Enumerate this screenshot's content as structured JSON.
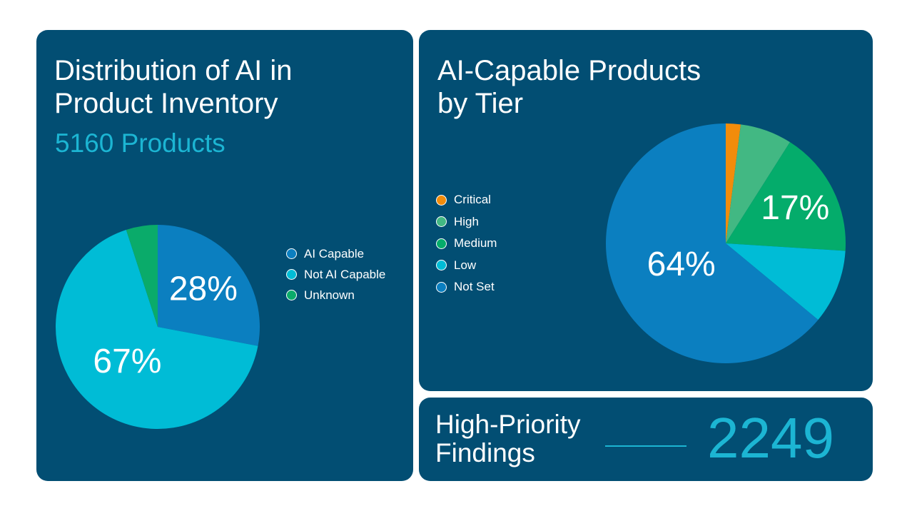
{
  "colors": {
    "panel_bg": "#024e73",
    "accent_cyan": "#1cb5d3",
    "ai_capable": "#0b7fc0",
    "not_ai_capable": "#00bcd6",
    "unknown": "#0aab6a",
    "critical": "#f28c0b",
    "high": "#42b883",
    "medium": "#04ac6b",
    "low": "#00bcd6",
    "not_set": "#0b7fc0"
  },
  "left": {
    "title": "Distribution of AI in Product Inventory",
    "subtitle": "5160 Products"
  },
  "right": {
    "title": "AI-Capable Products by Tier"
  },
  "findings": {
    "label": "High-Priority Findings",
    "value": "2249"
  },
  "chart_data": [
    {
      "type": "pie",
      "title": "Distribution of AI in Product Inventory",
      "subtitle": "5160 Products",
      "categories": [
        "AI Capable",
        "Not AI Capable",
        "Unknown"
      ],
      "values": [
        28,
        67,
        5
      ],
      "units": "%",
      "data_labels": [
        "28%",
        "67%",
        ""
      ],
      "colors": [
        "#0b7fc0",
        "#00bcd6",
        "#0aab6a"
      ],
      "legend": "right"
    },
    {
      "type": "pie",
      "title": "AI-Capable Products by Tier",
      "categories": [
        "Critical",
        "High",
        "Medium",
        "Low",
        "Not Set"
      ],
      "values": [
        2,
        7,
        17,
        10,
        64
      ],
      "units": "%",
      "data_labels": [
        "",
        "",
        "17%",
        "",
        "64%"
      ],
      "colors": [
        "#f28c0b",
        "#42b883",
        "#04ac6b",
        "#00bcd6",
        "#0b7fc0"
      ],
      "legend": "left"
    }
  ]
}
